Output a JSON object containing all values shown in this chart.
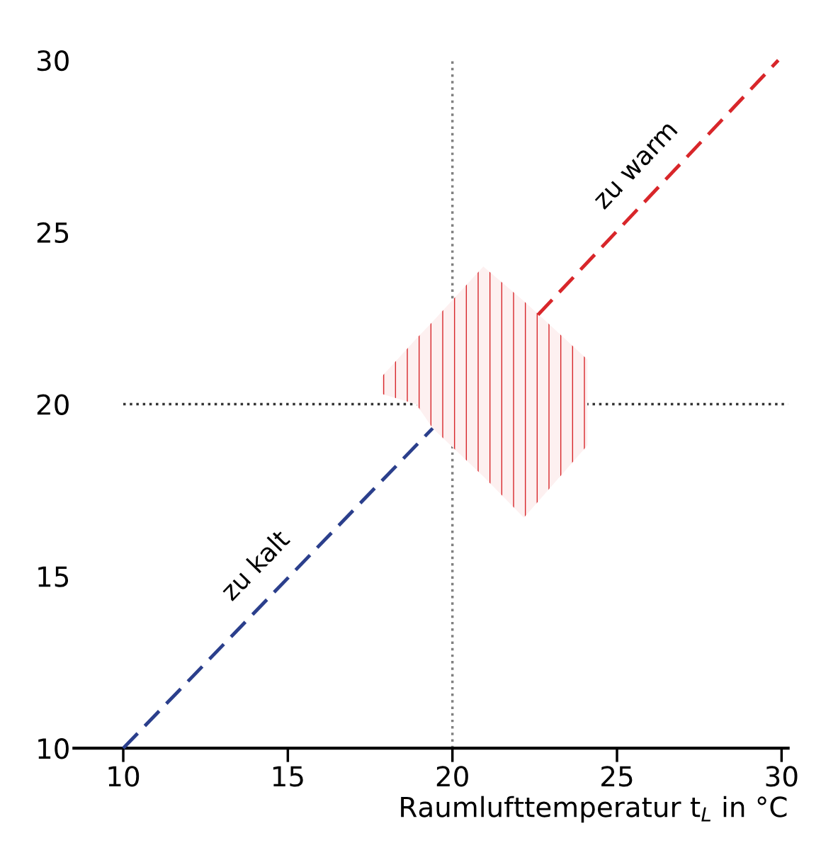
{
  "chart_data": {
    "type": "line",
    "xlabel": "Raumlufttemperatur t$_{L}$ in °C",
    "xlim": [
      8.5,
      30.2
    ],
    "xticks": [
      10,
      15,
      20,
      25,
      30
    ],
    "ylim": [
      10,
      30
    ],
    "yticks": [
      10,
      15,
      20,
      25,
      30
    ],
    "grid": false,
    "line_style": "dashed",
    "marker": "none",
    "series": [
      {
        "color": "#2b3f8c",
        "x": [
          10,
          19.4
        ],
        "values": [
          10,
          19.3
        ]
      },
      {
        "color": "#d8262a",
        "x": [
          22.6,
          29.9
        ],
        "values": [
          22.6,
          30.0
        ]
      },
      {
        "color": "#d8262a",
        "x": [
          17.85,
          18.9,
          19.4,
          20.94,
          22.17,
          24.1
        ],
        "values": [
          null,
          null,
          null,
          null,
          null,
          null
        ],
        "upper": [
          20.8,
          21.9,
          22.4,
          24.0,
          23.0,
          21.3
        ],
        "lower": [
          20.3,
          20.0,
          19.3,
          17.9,
          16.7,
          18.8
        ]
      }
    ],
    "ref_lines": [
      {
        "axis": "y",
        "value": 20,
        "color": "#333333",
        "line_style": "dotted"
      },
      {
        "axis": "x",
        "value": 20,
        "color": "#808080",
        "line_style": "dotted"
      }
    ],
    "annotations": [
      "zu kalt",
      "zu warm"
    ]
  }
}
